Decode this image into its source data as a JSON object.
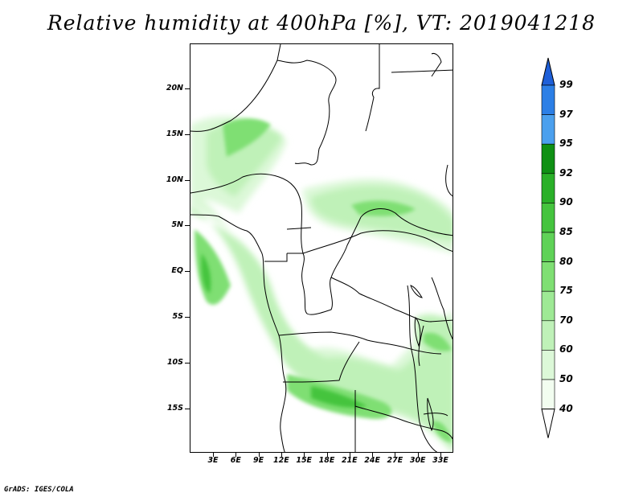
{
  "title": "Relative humidity at 400hPa [%], VT: 2019041218",
  "credit": "GrADS: IGES/COLA",
  "lat_labels": [
    "20N",
    "15N",
    "10N",
    "5N",
    "EQ",
    "5S",
    "10S",
    "15S"
  ],
  "lon_labels": [
    "3E",
    "6E",
    "9E",
    "12E",
    "15E",
    "18E",
    "21E",
    "24E",
    "27E",
    "30E",
    "33E"
  ],
  "colorbar": {
    "levels": [
      "99",
      "97",
      "95",
      "92",
      "90",
      "85",
      "80",
      "75",
      "70",
      "60",
      "50",
      "40"
    ],
    "colors": [
      "#1e5fd8",
      "#2c7fe6",
      "#4ba0ee",
      "#0f9014",
      "#2ab028",
      "#45c43e",
      "#5fd257",
      "#7fdf73",
      "#9ee995",
      "#bff1b8",
      "#dcf8d8",
      "#f2fdf0",
      "#ffffff"
    ]
  }
}
